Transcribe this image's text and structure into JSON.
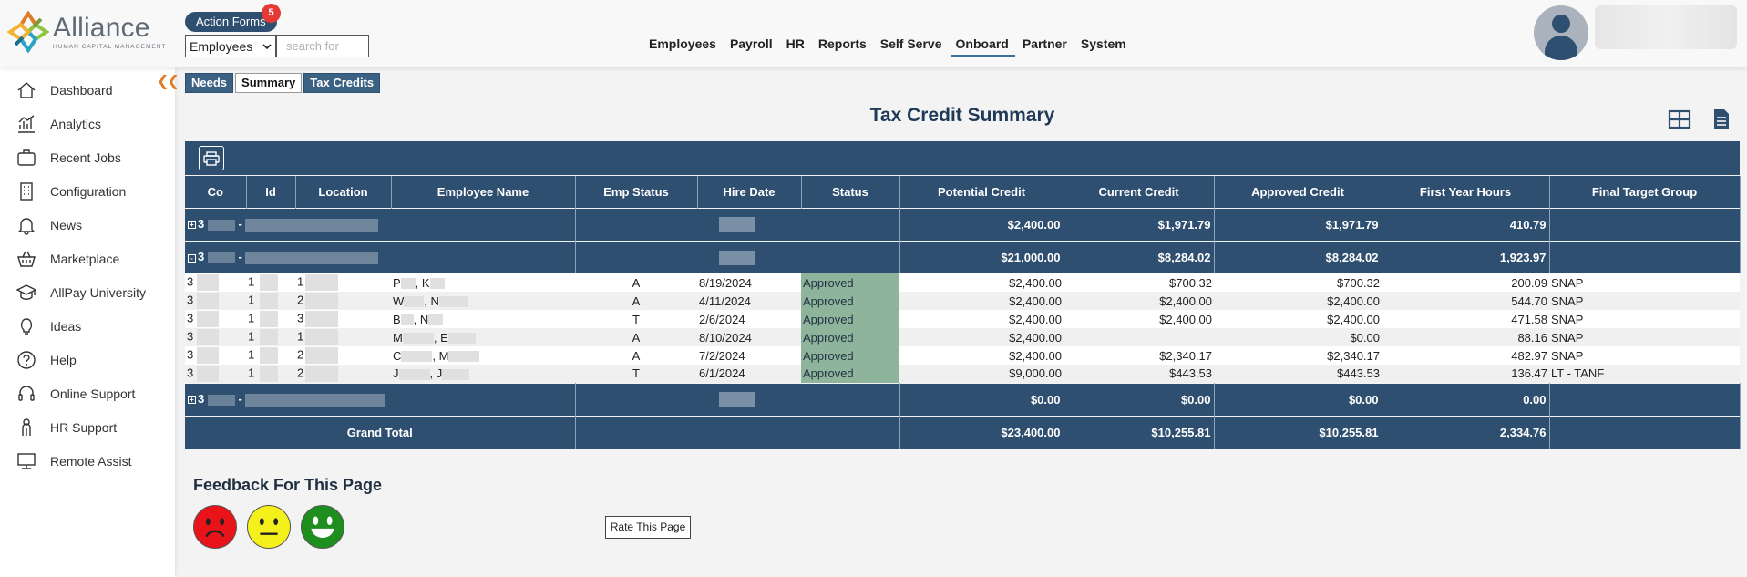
{
  "header": {
    "logo_name": "Alliance",
    "logo_tagline": "HUMAN CAPITAL MANAGEMENT",
    "action_forms_label": "Action Forms",
    "action_forms_count": "5",
    "employee_select_value": "Employees",
    "search_placeholder": "search for",
    "nav": [
      "Employees",
      "Payroll",
      "HR",
      "Reports",
      "Self Serve",
      "Onboard",
      "Partner",
      "System"
    ],
    "active_nav": "Onboard"
  },
  "sidebar": {
    "collapse_icon": "double-chevron-left",
    "items": [
      {
        "label": "Dashboard",
        "icon": "home-icon"
      },
      {
        "label": "Analytics",
        "icon": "analytics-icon"
      },
      {
        "label": "Recent Jobs",
        "icon": "briefcase-icon"
      },
      {
        "label": "Configuration",
        "icon": "building-icon"
      },
      {
        "label": "News",
        "icon": "bell-icon"
      },
      {
        "label": "Marketplace",
        "icon": "basket-icon"
      },
      {
        "label": "AllPay University",
        "icon": "graduation-cap-icon"
      },
      {
        "label": "Ideas",
        "icon": "lightbulb-icon"
      },
      {
        "label": "Help",
        "icon": "question-icon"
      },
      {
        "label": "Online Support",
        "icon": "headset-icon"
      },
      {
        "label": "HR Support",
        "icon": "person-icon"
      },
      {
        "label": "Remote Assist",
        "icon": "monitor-icon"
      }
    ]
  },
  "tabs": {
    "items": [
      "Needs",
      "Summary",
      "Tax Credits"
    ],
    "active": "Summary"
  },
  "page": {
    "title": "Tax Credit Summary"
  },
  "table": {
    "columns": [
      "Co",
      "Id",
      "Location",
      "Employee Name",
      "Emp Status",
      "Hire Date",
      "Status",
      "Potential Credit",
      "Current Credit",
      "Approved Credit",
      "First Year Hours",
      "Final Target Group"
    ],
    "groups": [
      {
        "co": "3",
        "separator": "-",
        "toggle": "+",
        "potential": "$2,400.00",
        "current": "$1,971.79",
        "approved": "$1,971.79",
        "hours": "410.79",
        "expanded": false
      },
      {
        "co": "3",
        "separator": "-",
        "toggle": "-",
        "potential": "$21,000.00",
        "current": "$8,284.02",
        "approved": "$8,284.02",
        "hours": "1,923.97",
        "expanded": true
      },
      {
        "co": "3",
        "separator": "-",
        "toggle": "+",
        "potential": "$0.00",
        "current": "$0.00",
        "approved": "$0.00",
        "hours": "0.00",
        "expanded": false
      }
    ],
    "details": [
      {
        "co": "3",
        "id": "1",
        "loc": "1",
        "name_a": "P",
        "name_b": "K",
        "emp_status": "A",
        "hire_date": "8/19/2024",
        "status": "Approved",
        "potential": "$2,400.00",
        "current": "$700.32",
        "approved": "$700.32",
        "hours": "200.09",
        "group": "SNAP"
      },
      {
        "co": "3",
        "id": "1",
        "loc": "2",
        "name_a": "W",
        "name_b": "N",
        "emp_status": "A",
        "hire_date": "4/11/2024",
        "status": "Approved",
        "potential": "$2,400.00",
        "current": "$2,400.00",
        "approved": "$2,400.00",
        "hours": "544.70",
        "group": "SNAP"
      },
      {
        "co": "3",
        "id": "1",
        "loc": "3",
        "name_a": "B",
        "name_b": "N",
        "emp_status": "T",
        "hire_date": "2/6/2024",
        "status": "Approved",
        "potential": "$2,400.00",
        "current": "$2,400.00",
        "approved": "$2,400.00",
        "hours": "471.58",
        "group": "SNAP"
      },
      {
        "co": "3",
        "id": "1",
        "loc": "1",
        "name_a": "M",
        "name_b": "E",
        "emp_status": "A",
        "hire_date": "8/10/2024",
        "status": "Approved",
        "potential": "$2,400.00",
        "current": "",
        "approved": "$0.00",
        "hours": "88.16",
        "group": "SNAP"
      },
      {
        "co": "3",
        "id": "1",
        "loc": "2",
        "name_a": "C",
        "name_b": "M",
        "emp_status": "A",
        "hire_date": "7/2/2024",
        "status": "Approved",
        "potential": "$2,400.00",
        "current": "$2,340.17",
        "approved": "$2,340.17",
        "hours": "482.97",
        "group": "SNAP"
      },
      {
        "co": "3",
        "id": "1",
        "loc": "2",
        "name_a": "J",
        "name_b": "J",
        "emp_status": "T",
        "hire_date": "6/1/2024",
        "status": "Approved",
        "potential": "$9,000.00",
        "current": "$443.53",
        "approved": "$443.53",
        "hours": "136.47",
        "group": "LT - TANF"
      }
    ],
    "grand_total": {
      "label": "Grand Total",
      "potential": "$23,400.00",
      "current": "$10,255.81",
      "approved": "$10,255.81",
      "hours": "2,334.76"
    }
  },
  "feedback": {
    "title": "Feedback For This Page",
    "rate_button": "Rate This Page",
    "faces": [
      "sad-face",
      "neutral-face",
      "happy-face"
    ]
  },
  "colors": {
    "header_blue": "#2f4f70",
    "approved_green": "#8fb49c",
    "accent_orange": "#e07b2a",
    "badge_red": "#e53935"
  }
}
